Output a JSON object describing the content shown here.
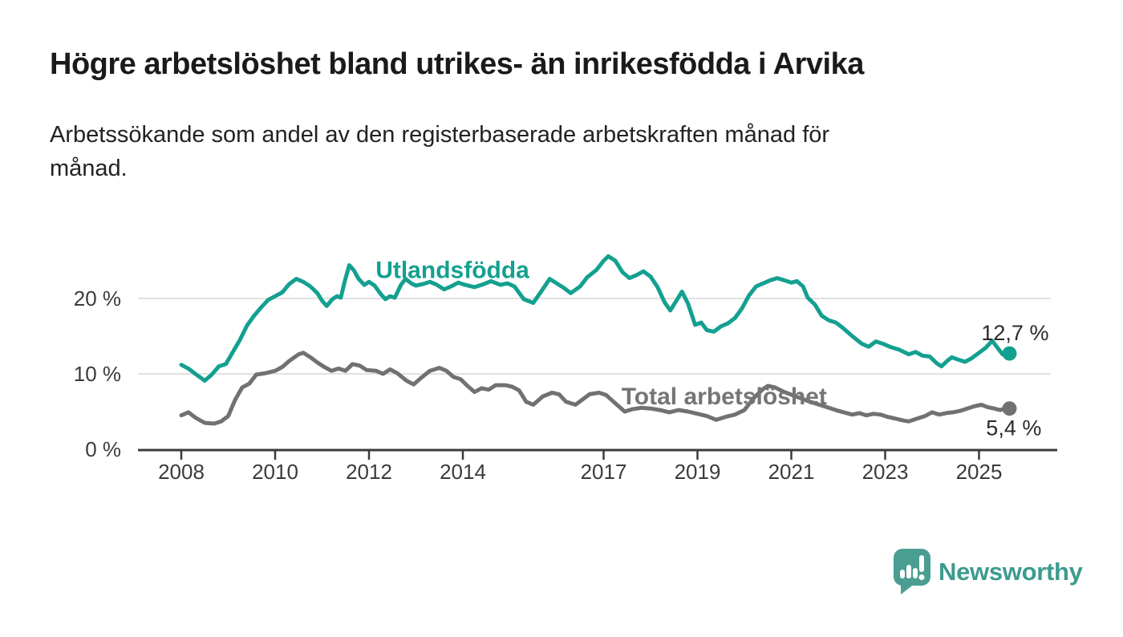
{
  "header": {
    "title": "Högre arbetslöshet bland utrikes- än inrikesfödda i Arvika",
    "subtitle": "Arbetssökande som andel av den registerbaserade arbetskraften månad för månad.",
    "subtitle_lines": [
      "Arbetssökande som andel av den registerbaserade arbetskraften månad för",
      "månad."
    ]
  },
  "branding": {
    "logo_text": "Newsworthy",
    "logo_icon": "bar-chart-speech-bubble-icon",
    "logo_color": "#4A9E91",
    "text_color": "#3B9B8E"
  },
  "chart_data": {
    "type": "line",
    "unit": "%",
    "grid": "horizontal",
    "legend_position": "inline-labels",
    "style": {
      "axis_color": "#3B3B3B",
      "axis_text_color": "#3B3B3B",
      "grid_color": "#E1E1E1",
      "value_label_color": "#2A2A2A"
    },
    "x_axis": {
      "range": [
        2007.1,
        2026.7
      ],
      "ticks": [
        2008,
        2010,
        2012,
        2014,
        2017,
        2019,
        2021,
        2023,
        2025
      ],
      "labels": [
        "2008",
        "2010",
        "2012",
        "2014",
        "2017",
        "2019",
        "2021",
        "2023",
        "2025"
      ]
    },
    "y_axis": {
      "range": [
        0,
        27
      ],
      "ticks": [
        0,
        10,
        20
      ],
      "labels": [
        "0 %",
        "10 %",
        "20 %"
      ]
    },
    "series": [
      {
        "id": "utlandsfodda",
        "name": "Utlandsfödda",
        "color": "#14A090",
        "end_value": 12.7,
        "end_label": "12,7 %",
        "points": [
          [
            2008.0,
            11.2
          ],
          [
            2008.15,
            10.7
          ],
          [
            2008.3,
            10.0
          ],
          [
            2008.5,
            9.1
          ],
          [
            2008.65,
            9.9
          ],
          [
            2008.8,
            11.0
          ],
          [
            2008.95,
            11.3
          ],
          [
            2009.1,
            12.9
          ],
          [
            2009.25,
            14.5
          ],
          [
            2009.4,
            16.4
          ],
          [
            2009.55,
            17.7
          ],
          [
            2009.7,
            18.8
          ],
          [
            2009.85,
            19.8
          ],
          [
            2010.0,
            20.3
          ],
          [
            2010.15,
            20.8
          ],
          [
            2010.3,
            21.9
          ],
          [
            2010.45,
            22.6
          ],
          [
            2010.6,
            22.2
          ],
          [
            2010.75,
            21.6
          ],
          [
            2010.9,
            20.7
          ],
          [
            2011.0,
            19.7
          ],
          [
            2011.1,
            19.0
          ],
          [
            2011.22,
            19.9
          ],
          [
            2011.32,
            20.3
          ],
          [
            2011.4,
            20.1
          ],
          [
            2011.48,
            22.2
          ],
          [
            2011.58,
            24.4
          ],
          [
            2011.68,
            23.7
          ],
          [
            2011.78,
            22.6
          ],
          [
            2011.9,
            21.8
          ],
          [
            2012.0,
            22.2
          ],
          [
            2012.12,
            21.7
          ],
          [
            2012.25,
            20.6
          ],
          [
            2012.35,
            19.9
          ],
          [
            2012.45,
            20.3
          ],
          [
            2012.55,
            20.1
          ],
          [
            2012.68,
            21.8
          ],
          [
            2012.78,
            22.6
          ],
          [
            2012.9,
            22.0
          ],
          [
            2013.0,
            21.7
          ],
          [
            2013.15,
            21.9
          ],
          [
            2013.3,
            22.2
          ],
          [
            2013.45,
            21.8
          ],
          [
            2013.6,
            21.2
          ],
          [
            2013.75,
            21.6
          ],
          [
            2013.9,
            22.1
          ],
          [
            2014.05,
            21.8
          ],
          [
            2014.25,
            21.5
          ],
          [
            2014.45,
            21.9
          ],
          [
            2014.6,
            22.3
          ],
          [
            2014.8,
            21.8
          ],
          [
            2014.95,
            22.0
          ],
          [
            2015.1,
            21.6
          ],
          [
            2015.3,
            19.9
          ],
          [
            2015.5,
            19.4
          ],
          [
            2015.7,
            21.2
          ],
          [
            2015.85,
            22.6
          ],
          [
            2016.0,
            22.0
          ],
          [
            2016.15,
            21.4
          ],
          [
            2016.3,
            20.7
          ],
          [
            2016.5,
            21.6
          ],
          [
            2016.65,
            22.8
          ],
          [
            2016.85,
            23.8
          ],
          [
            2017.0,
            25.0
          ],
          [
            2017.1,
            25.6
          ],
          [
            2017.25,
            25.0
          ],
          [
            2017.4,
            23.5
          ],
          [
            2017.55,
            22.7
          ],
          [
            2017.7,
            23.1
          ],
          [
            2017.85,
            23.6
          ],
          [
            2018.0,
            22.9
          ],
          [
            2018.15,
            21.5
          ],
          [
            2018.3,
            19.5
          ],
          [
            2018.42,
            18.4
          ],
          [
            2018.55,
            19.7
          ],
          [
            2018.67,
            20.9
          ],
          [
            2018.8,
            19.3
          ],
          [
            2018.95,
            16.5
          ],
          [
            2019.08,
            16.8
          ],
          [
            2019.2,
            15.8
          ],
          [
            2019.35,
            15.6
          ],
          [
            2019.5,
            16.3
          ],
          [
            2019.65,
            16.7
          ],
          [
            2019.8,
            17.4
          ],
          [
            2019.95,
            18.7
          ],
          [
            2020.1,
            20.4
          ],
          [
            2020.25,
            21.6
          ],
          [
            2020.4,
            22.0
          ],
          [
            2020.55,
            22.4
          ],
          [
            2020.7,
            22.7
          ],
          [
            2020.85,
            22.4
          ],
          [
            2021.0,
            22.1
          ],
          [
            2021.12,
            22.3
          ],
          [
            2021.25,
            21.6
          ],
          [
            2021.35,
            20.1
          ],
          [
            2021.5,
            19.2
          ],
          [
            2021.65,
            17.7
          ],
          [
            2021.8,
            17.1
          ],
          [
            2021.95,
            16.8
          ],
          [
            2022.1,
            16.1
          ],
          [
            2022.3,
            15.0
          ],
          [
            2022.5,
            14.0
          ],
          [
            2022.65,
            13.6
          ],
          [
            2022.8,
            14.3
          ],
          [
            2022.95,
            14.0
          ],
          [
            2023.1,
            13.6
          ],
          [
            2023.3,
            13.2
          ],
          [
            2023.5,
            12.6
          ],
          [
            2023.65,
            12.9
          ],
          [
            2023.8,
            12.4
          ],
          [
            2023.95,
            12.3
          ],
          [
            2024.1,
            11.4
          ],
          [
            2024.2,
            11.0
          ],
          [
            2024.32,
            11.7
          ],
          [
            2024.42,
            12.2
          ],
          [
            2024.55,
            11.9
          ],
          [
            2024.7,
            11.6
          ],
          [
            2024.85,
            12.1
          ],
          [
            2025.0,
            12.8
          ],
          [
            2025.15,
            13.5
          ],
          [
            2025.28,
            14.4
          ],
          [
            2025.4,
            13.4
          ],
          [
            2025.5,
            12.6
          ],
          [
            2025.58,
            12.4
          ],
          [
            2025.65,
            12.7
          ]
        ]
      },
      {
        "id": "total-arbetsloshet",
        "name": "Total arbetslöshet",
        "color": "#717171",
        "end_value": 5.4,
        "end_label": "5,4 %",
        "points": [
          [
            2008.0,
            4.5
          ],
          [
            2008.15,
            4.9
          ],
          [
            2008.3,
            4.2
          ],
          [
            2008.5,
            3.5
          ],
          [
            2008.7,
            3.4
          ],
          [
            2008.85,
            3.7
          ],
          [
            2009.0,
            4.4
          ],
          [
            2009.15,
            6.6
          ],
          [
            2009.3,
            8.2
          ],
          [
            2009.45,
            8.7
          ],
          [
            2009.6,
            9.9
          ],
          [
            2009.8,
            10.1
          ],
          [
            2010.0,
            10.4
          ],
          [
            2010.15,
            10.9
          ],
          [
            2010.3,
            11.7
          ],
          [
            2010.5,
            12.6
          ],
          [
            2010.6,
            12.8
          ],
          [
            2010.75,
            12.2
          ],
          [
            2010.9,
            11.5
          ],
          [
            2011.05,
            10.9
          ],
          [
            2011.2,
            10.4
          ],
          [
            2011.35,
            10.7
          ],
          [
            2011.5,
            10.4
          ],
          [
            2011.65,
            11.3
          ],
          [
            2011.8,
            11.1
          ],
          [
            2011.95,
            10.5
          ],
          [
            2012.15,
            10.4
          ],
          [
            2012.3,
            10.0
          ],
          [
            2012.45,
            10.6
          ],
          [
            2012.6,
            10.1
          ],
          [
            2012.8,
            9.1
          ],
          [
            2012.95,
            8.6
          ],
          [
            2013.1,
            9.4
          ],
          [
            2013.3,
            10.4
          ],
          [
            2013.5,
            10.8
          ],
          [
            2013.65,
            10.4
          ],
          [
            2013.8,
            9.6
          ],
          [
            2013.95,
            9.3
          ],
          [
            2014.1,
            8.4
          ],
          [
            2014.25,
            7.6
          ],
          [
            2014.4,
            8.1
          ],
          [
            2014.55,
            7.9
          ],
          [
            2014.7,
            8.5
          ],
          [
            2014.9,
            8.5
          ],
          [
            2015.05,
            8.3
          ],
          [
            2015.2,
            7.8
          ],
          [
            2015.35,
            6.3
          ],
          [
            2015.5,
            5.9
          ],
          [
            2015.7,
            7.0
          ],
          [
            2015.9,
            7.5
          ],
          [
            2016.05,
            7.3
          ],
          [
            2016.2,
            6.3
          ],
          [
            2016.4,
            5.9
          ],
          [
            2016.55,
            6.6
          ],
          [
            2016.7,
            7.3
          ],
          [
            2016.9,
            7.5
          ],
          [
            2017.05,
            7.2
          ],
          [
            2017.25,
            6.1
          ],
          [
            2017.45,
            5.0
          ],
          [
            2017.6,
            5.3
          ],
          [
            2017.8,
            5.5
          ],
          [
            2018.0,
            5.4
          ],
          [
            2018.2,
            5.2
          ],
          [
            2018.4,
            4.9
          ],
          [
            2018.6,
            5.2
          ],
          [
            2018.8,
            5.0
          ],
          [
            2019.0,
            4.7
          ],
          [
            2019.2,
            4.4
          ],
          [
            2019.4,
            3.9
          ],
          [
            2019.6,
            4.3
          ],
          [
            2019.8,
            4.6
          ],
          [
            2020.0,
            5.2
          ],
          [
            2020.2,
            6.8
          ],
          [
            2020.4,
            8.0
          ],
          [
            2020.5,
            8.4
          ],
          [
            2020.65,
            8.2
          ],
          [
            2020.85,
            7.6
          ],
          [
            2021.1,
            7.0
          ],
          [
            2021.4,
            6.3
          ],
          [
            2021.7,
            5.7
          ],
          [
            2022.0,
            5.1
          ],
          [
            2022.3,
            4.6
          ],
          [
            2022.45,
            4.8
          ],
          [
            2022.6,
            4.5
          ],
          [
            2022.75,
            4.7
          ],
          [
            2022.9,
            4.6
          ],
          [
            2023.05,
            4.3
          ],
          [
            2023.2,
            4.1
          ],
          [
            2023.4,
            3.8
          ],
          [
            2023.5,
            3.7
          ],
          [
            2023.65,
            4.0
          ],
          [
            2023.85,
            4.4
          ],
          [
            2024.0,
            4.9
          ],
          [
            2024.15,
            4.6
          ],
          [
            2024.3,
            4.8
          ],
          [
            2024.45,
            4.9
          ],
          [
            2024.6,
            5.1
          ],
          [
            2024.75,
            5.4
          ],
          [
            2024.9,
            5.7
          ],
          [
            2025.05,
            5.9
          ],
          [
            2025.18,
            5.6
          ],
          [
            2025.32,
            5.4
          ],
          [
            2025.45,
            5.2
          ],
          [
            2025.55,
            5.4
          ],
          [
            2025.65,
            5.4
          ]
        ]
      }
    ],
    "annotations": [
      {
        "name": "series-label-utlandsfodda",
        "text": "Utlandsfödda",
        "x": 2012.14,
        "y": 22.7,
        "color": "#14A090",
        "size": 30,
        "weight": "bold",
        "anchor": "start"
      },
      {
        "name": "series-label-total-arbetsloshet",
        "text": "Total arbetslöshet",
        "x": 2017.38,
        "y": 5.95,
        "color": "#757575",
        "size": 30,
        "weight": "bold",
        "anchor": "start"
      },
      {
        "name": "end-value-label-utlandsfodda",
        "text": "12,7 %",
        "x": 2025.05,
        "y": 14.45,
        "color": "#2A2A2A",
        "size": 27,
        "weight": "normal",
        "anchor": "start"
      },
      {
        "name": "end-value-label-total-arbetsloshet",
        "text": "5,4 %",
        "x": 2025.15,
        "y": 1.85,
        "color": "#2A2A2A",
        "size": 27,
        "weight": "normal",
        "anchor": "start"
      }
    ]
  }
}
